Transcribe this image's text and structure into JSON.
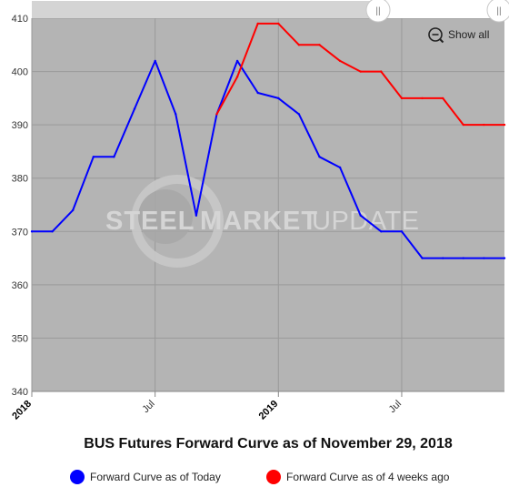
{
  "chart_data": {
    "type": "line",
    "title": "BUS Futures Forward Curve as of November 29, 2018",
    "xlabel": "",
    "ylabel": "",
    "ylim": [
      340,
      410
    ],
    "yticks": [
      340,
      350,
      360,
      370,
      380,
      390,
      400,
      410
    ],
    "xlim": [
      "2018-01",
      "2019-12"
    ],
    "xticks": [
      {
        "date": "2018-01",
        "label": "2018",
        "major": true
      },
      {
        "date": "2018-07",
        "label": "Jul",
        "major": false
      },
      {
        "date": "2019-01",
        "label": "2019",
        "major": true
      },
      {
        "date": "2019-07",
        "label": "Jul",
        "major": false
      }
    ],
    "grid": true,
    "legend": "bottom",
    "series": [
      {
        "name": "Forward Curve as of Today",
        "color": "#0000ff",
        "points": [
          [
            "2018-01",
            370
          ],
          [
            "2018-02",
            370
          ],
          [
            "2018-03",
            374
          ],
          [
            "2018-04",
            384
          ],
          [
            "2018-05",
            384
          ],
          [
            "2018-06",
            393
          ],
          [
            "2018-07",
            402
          ],
          [
            "2018-08",
            392
          ],
          [
            "2018-09",
            373
          ],
          [
            "2018-10",
            392
          ],
          [
            "2018-11",
            402
          ],
          [
            "2018-12",
            396
          ],
          [
            "2019-01",
            395
          ],
          [
            "2019-02",
            392
          ],
          [
            "2019-03",
            384
          ],
          [
            "2019-04",
            382
          ],
          [
            "2019-05",
            373
          ],
          [
            "2019-06",
            370
          ],
          [
            "2019-07",
            370
          ],
          [
            "2019-08",
            365
          ],
          [
            "2019-09",
            365
          ],
          [
            "2019-10",
            365
          ],
          [
            "2019-11",
            365
          ],
          [
            "2019-12",
            365
          ]
        ]
      },
      {
        "name": "Forward Curve as of 4 weeks ago",
        "color": "#ff0000",
        "points": [
          [
            "2018-10",
            392
          ],
          [
            "2018-11",
            399
          ],
          [
            "2018-12",
            409
          ],
          [
            "2019-01",
            409
          ],
          [
            "2019-02",
            405
          ],
          [
            "2019-03",
            405
          ],
          [
            "2019-04",
            402
          ],
          [
            "2019-05",
            400
          ],
          [
            "2019-06",
            400
          ],
          [
            "2019-07",
            395
          ],
          [
            "2019-08",
            395
          ],
          [
            "2019-09",
            395
          ],
          [
            "2019-10",
            390
          ],
          [
            "2019-11",
            390
          ],
          [
            "2019-12",
            390
          ]
        ]
      }
    ]
  },
  "controls": {
    "show_all_label": "Show all",
    "zoom_icon": "zoom-out-icon",
    "slider_handle_glyph": "||"
  },
  "watermark": {
    "word1": "STEEL",
    "word2": "MARKET",
    "word3": "UPDATE"
  }
}
